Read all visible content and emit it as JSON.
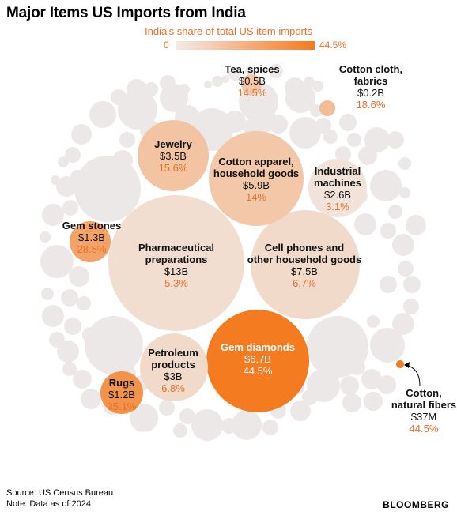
{
  "title": "Major Items US Imports from India",
  "legend": {
    "title": "India's share of total US item imports",
    "min_label": "0",
    "max_label": "44.5%",
    "color_low": "#f1ebe8",
    "color_high": "#f47b20"
  },
  "footer": {
    "source": "Source: US Census Bureau",
    "note": "Note: Data as of 2024",
    "brand": "BLOOMBERG"
  },
  "chart_data": {
    "type": "bubble",
    "title": "Major Items US Imports from India",
    "subtitle": "India's share of total US item imports",
    "color_scale": {
      "min": 0,
      "max": 44.5,
      "unit": "%"
    },
    "labeled_items": [
      {
        "name": "Pharmaceutical preparations",
        "value_label": "$13B",
        "value_usd_b": 13,
        "share_pct": 5.3,
        "share_label": "5.3%"
      },
      {
        "name": "Cell phones and other household goods",
        "value_label": "$7.5B",
        "value_usd_b": 7.5,
        "share_pct": 6.7,
        "share_label": "6.7%"
      },
      {
        "name": "Gem diamonds",
        "value_label": "$6.7B",
        "value_usd_b": 6.7,
        "share_pct": 44.5,
        "share_label": "44.5%"
      },
      {
        "name": "Cotton apparel, household goods",
        "value_label": "$5.9B",
        "value_usd_b": 5.9,
        "share_pct": 14,
        "share_label": "14%"
      },
      {
        "name": "Jewelry",
        "value_label": "$3.5B",
        "value_usd_b": 3.5,
        "share_pct": 15.6,
        "share_label": "15.6%"
      },
      {
        "name": "Petroleum products",
        "value_label": "$3B",
        "value_usd_b": 3,
        "share_pct": 6.8,
        "share_label": "6.8%"
      },
      {
        "name": "Industrial machines",
        "value_label": "$2.6B",
        "value_usd_b": 2.6,
        "share_pct": 3.1,
        "share_label": "3.1%"
      },
      {
        "name": "Gem stones",
        "value_label": "$1.3B",
        "value_usd_b": 1.3,
        "share_pct": 28.5,
        "share_label": "28.5%"
      },
      {
        "name": "Rugs",
        "value_label": "$1.2B",
        "value_usd_b": 1.2,
        "share_pct": 35.1,
        "share_label": "35.1%"
      },
      {
        "name": "Tea, spices",
        "value_label": "$0.5B",
        "value_usd_b": 0.5,
        "share_pct": 14.5,
        "share_label": "14.5%"
      },
      {
        "name": "Cotton cloth, fabrics",
        "value_label": "$0.2B",
        "value_usd_b": 0.2,
        "share_pct": 18.6,
        "share_label": "18.6%"
      },
      {
        "name": "Cotton, natural fibers",
        "value_label": "$37M",
        "value_usd_b": 0.037,
        "share_pct": 44.5,
        "share_label": "44.5%"
      }
    ]
  }
}
